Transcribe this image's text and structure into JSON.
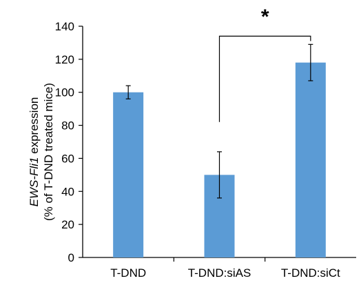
{
  "chart_data": {
    "type": "bar",
    "categories": [
      "T-DND",
      "T-DND:siAS",
      "T-DND:siCt"
    ],
    "values": [
      100,
      50,
      118
    ],
    "error": [
      4,
      14,
      11
    ],
    "ylabel_line1_italic": "EWS-Fli1",
    "ylabel_line1_rest": " expression",
    "ylabel_line2": "(% of T-DND treated mice)",
    "ylim": [
      0,
      140
    ],
    "yticks": [
      0,
      20,
      40,
      60,
      80,
      100,
      120,
      140
    ],
    "significance": {
      "from": "T-DND:siAS",
      "to": "T-DND:siCt",
      "label": "*"
    },
    "bar_color": "#5b9bd5",
    "grid": false
  }
}
